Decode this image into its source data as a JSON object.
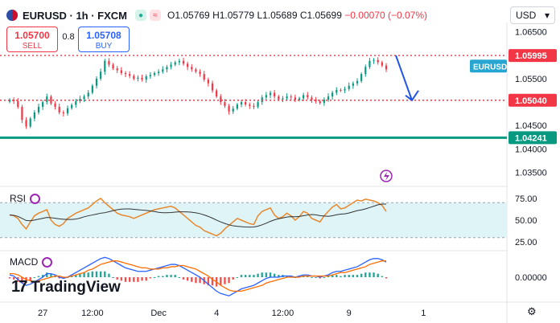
{
  "header": {
    "symbol": "EURUSD · 1h · FXCM",
    "open": "O1.05769",
    "high": "H1.05779",
    "low": "L1.05689",
    "close": "C1.05699",
    "change": "−0.00070 (−0.07%)"
  },
  "trade": {
    "sell_price": "1.05700",
    "sell_label": "SELL",
    "spread": "0.8",
    "buy_price": "1.05708",
    "buy_label": "BUY"
  },
  "currency_selector": "USD",
  "price_axis": {
    "ticks": [
      "1.06500",
      "1.05500",
      "1.04500",
      "1.04000",
      "1.03500"
    ],
    "tick_values": [
      1.065,
      1.055,
      1.045,
      1.04,
      1.035
    ]
  },
  "levels": [
    {
      "value": 1.05995,
      "label": "1.05995",
      "color": "#f23645",
      "style": "dotted"
    },
    {
      "value": 1.0504,
      "label": "1.05040",
      "color": "#f23645",
      "style": "dotted"
    },
    {
      "value": 1.04241,
      "label": "1.04241",
      "color": "#089981",
      "style": "solid"
    }
  ],
  "symbol_badge": "EURUSD",
  "rsi": {
    "label": "RSI",
    "ticks": [
      "75.00",
      "50.00",
      "25.00"
    ],
    "tick_values": [
      75,
      50,
      25
    ],
    "band": [
      30,
      70
    ]
  },
  "macd": {
    "label": "MACD",
    "ticks": [
      "0.00000"
    ],
    "tick_values": [
      0
    ]
  },
  "time_axis": [
    "27",
    "12:00",
    "Dec",
    "4",
    "12:00",
    "9",
    "1"
  ],
  "brand": "TradingView",
  "colors": {
    "bull": "#089981",
    "bear": "#f23645",
    "arrow": "#1e53e5",
    "rsi_line": "#e8872c",
    "rsi_ma": "#333333",
    "macd": "#2962ff",
    "signal": "#ff6d00"
  },
  "chart_data": {
    "type": "candlestick",
    "timeframe": "1h",
    "ylim": [
      1.032,
      1.067
    ],
    "close_series": [
      1.0505,
      1.0502,
      1.049,
      1.0462,
      1.0448,
      1.0465,
      1.0478,
      1.049,
      1.05,
      1.0512,
      1.0497,
      1.049,
      1.0478,
      1.0476,
      1.0487,
      1.0494,
      1.0502,
      1.0507,
      1.0512,
      1.052,
      1.0535,
      1.055,
      1.0565,
      1.0588,
      1.058,
      1.0572,
      1.0568,
      1.0562,
      1.056,
      1.0556,
      1.055,
      1.0552,
      1.0548,
      1.0555,
      1.0558,
      1.0562,
      1.0565,
      1.057,
      1.0575,
      1.058,
      1.0585,
      1.0588,
      1.0582,
      1.0575,
      1.057,
      1.0565,
      1.056,
      1.0548,
      1.054,
      1.0525,
      1.0512,
      1.05,
      1.0492,
      1.048,
      1.0486,
      1.0495,
      1.05,
      1.0495,
      1.0492,
      1.049,
      1.05,
      1.051,
      1.0515,
      1.052,
      1.0512,
      1.0506,
      1.0508,
      1.0512,
      1.051,
      1.0505,
      1.0508,
      1.0515,
      1.051,
      1.0505,
      1.0502,
      1.0498,
      1.0505,
      1.0512,
      1.052,
      1.0526,
      1.0525,
      1.0528,
      1.0535,
      1.054,
      1.0545,
      1.056,
      1.0575,
      1.0588,
      1.059,
      1.0585,
      1.0578,
      1.057
    ],
    "rsi_series": [
      56,
      55,
      52,
      45,
      40,
      48,
      55,
      58,
      60,
      62,
      50,
      45,
      43,
      46,
      52,
      55,
      58,
      60,
      62,
      64,
      68,
      72,
      75,
      70,
      66,
      62,
      58,
      56,
      55,
      54,
      52,
      54,
      56,
      58,
      60,
      62,
      63,
      64,
      65,
      66,
      64,
      60,
      56,
      52,
      48,
      44,
      42,
      38,
      36,
      34,
      32,
      35,
      40,
      44,
      48,
      52,
      50,
      48,
      46,
      45,
      55,
      60,
      62,
      64,
      56,
      52,
      54,
      58,
      55,
      50,
      54,
      60,
      58,
      52,
      50,
      48,
      55,
      60,
      65,
      68,
      63,
      64,
      67,
      70,
      73,
      72,
      74,
      73,
      72,
      70,
      67,
      60
    ],
    "macd_series": [
      0.0002,
      0.0001,
      -0.0002,
      -0.0005,
      -0.0007,
      -0.0006,
      -0.0004,
      -0.0002,
      0.0,
      0.0003,
      0.0003,
      0.0002,
      0.0,
      -0.0001,
      0.0,
      0.0002,
      0.0004,
      0.0006,
      0.0008,
      0.001,
      0.0012,
      0.0014,
      0.0016,
      0.0017,
      0.0016,
      0.0014,
      0.0012,
      0.001,
      0.0008,
      0.0007,
      0.0006,
      0.0005,
      0.0005,
      0.0005,
      0.0006,
      0.0007,
      0.0008,
      0.0009,
      0.001,
      0.0011,
      0.0011,
      0.001,
      0.0008,
      0.0006,
      0.0004,
      0.0002,
      0.0,
      -0.0003,
      -0.0006,
      -0.0009,
      -0.0012,
      -0.0014,
      -0.0015,
      -0.0016,
      -0.0014,
      -0.0012,
      -0.001,
      -0.0009,
      -0.0008,
      -0.0007,
      -0.0005,
      -0.0003,
      -0.0001,
      0.0,
      0.0,
      0.0,
      0.0001,
      0.0001,
      0.0001,
      0.0,
      0.0001,
      0.0002,
      0.0002,
      0.0001,
      0.0001,
      0.0,
      0.0001,
      0.0002,
      0.0004,
      0.0005,
      0.0005,
      0.0006,
      0.0007,
      0.0008,
      0.0009,
      0.0011,
      0.0013,
      0.0015,
      0.0016,
      0.0016,
      0.0015,
      0.0013
    ],
    "signal_series": [
      0.0003,
      0.0003,
      0.0002,
      0.0,
      -0.0002,
      -0.0003,
      -0.0004,
      -0.0003,
      -0.0002,
      -0.0001,
      0.0,
      0.0001,
      0.0001,
      0.0,
      0.0,
      0.0001,
      0.0002,
      0.0003,
      0.0004,
      0.0006,
      0.0007,
      0.0009,
      0.0011,
      0.0012,
      0.0013,
      0.0014,
      0.0014,
      0.0013,
      0.0012,
      0.0011,
      0.001,
      0.0009,
      0.0008,
      0.0008,
      0.0007,
      0.0007,
      0.0007,
      0.0008,
      0.0008,
      0.0009,
      0.0009,
      0.001,
      0.001,
      0.0009,
      0.0008,
      0.0007,
      0.0005,
      0.0003,
      0.0001,
      -0.0002,
      -0.0004,
      -0.0007,
      -0.0009,
      -0.0011,
      -0.0012,
      -0.0012,
      -0.0012,
      -0.0011,
      -0.001,
      -0.0009,
      -0.0008,
      -0.0007,
      -0.0005,
      -0.0004,
      -0.0003,
      -0.0002,
      -0.0001,
      0.0,
      0.0,
      0.0,
      0.0,
      0.0001,
      0.0001,
      0.0001,
      0.0001,
      0.0001,
      0.0001,
      0.0001,
      0.0002,
      0.0003,
      0.0004,
      0.0004,
      0.0005,
      0.0006,
      0.0007,
      0.0008,
      0.0009,
      0.0011,
      0.0012,
      0.0013,
      0.0014,
      0.0014
    ],
    "projection": {
      "from": 1.05995,
      "to": 1.0504
    }
  }
}
